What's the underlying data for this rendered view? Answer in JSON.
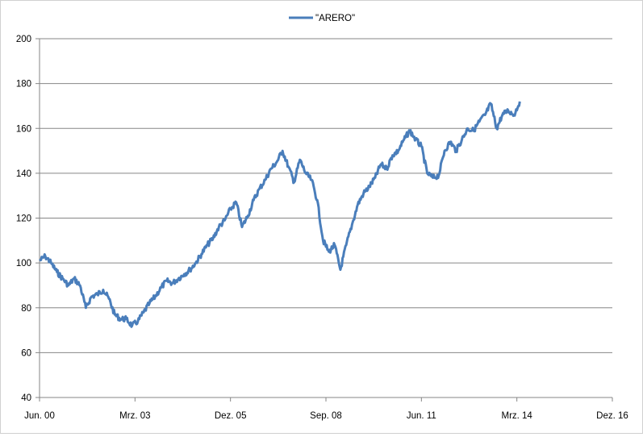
{
  "chart_data": {
    "type": "line",
    "title": "",
    "xlabel": "",
    "ylabel": "",
    "ylim": [
      40,
      200
    ],
    "yticks": [
      "40",
      "60",
      "80",
      "100",
      "120",
      "140",
      "160",
      "180",
      "200"
    ],
    "xlim": [
      "2000-06",
      "2016-12"
    ],
    "xticks": [
      "Jun. 00",
      "Mrz. 03",
      "Dez. 05",
      "Sep. 08",
      "Jun. 11",
      "Mrz. 14",
      "Dez. 16"
    ],
    "grid": "horizontal",
    "legend": "top-center",
    "series": [
      {
        "name": "\"ARERO\"",
        "color": "#4a7ebb",
        "points": [
          [
            "2000-06",
            101
          ],
          [
            "2000-08",
            103
          ],
          [
            "2000-10",
            100
          ],
          [
            "2000-12",
            96
          ],
          [
            "2001-02",
            93
          ],
          [
            "2001-04",
            90
          ],
          [
            "2001-06",
            93
          ],
          [
            "2001-08",
            90
          ],
          [
            "2001-10",
            80
          ],
          [
            "2001-12",
            85
          ],
          [
            "2002-02",
            86
          ],
          [
            "2002-04",
            88
          ],
          [
            "2002-06",
            84
          ],
          [
            "2002-08",
            77
          ],
          [
            "2002-10",
            75
          ],
          [
            "2002-12",
            75
          ],
          [
            "2003-02",
            72
          ],
          [
            "2003-04",
            74
          ],
          [
            "2003-06",
            78
          ],
          [
            "2003-08",
            82
          ],
          [
            "2003-10",
            85
          ],
          [
            "2003-12",
            89
          ],
          [
            "2004-02",
            92
          ],
          [
            "2004-04",
            91
          ],
          [
            "2004-06",
            93
          ],
          [
            "2004-08",
            95
          ],
          [
            "2004-10",
            97
          ],
          [
            "2004-12",
            100
          ],
          [
            "2005-02",
            104
          ],
          [
            "2005-04",
            108
          ],
          [
            "2005-06",
            111
          ],
          [
            "2005-08",
            116
          ],
          [
            "2005-10",
            119
          ],
          [
            "2005-12",
            124
          ],
          [
            "2006-02",
            127
          ],
          [
            "2006-04",
            116
          ],
          [
            "2006-06",
            121
          ],
          [
            "2006-08",
            128
          ],
          [
            "2006-10",
            133
          ],
          [
            "2006-12",
            137
          ],
          [
            "2007-02",
            142
          ],
          [
            "2007-04",
            145
          ],
          [
            "2007-06",
            150
          ],
          [
            "2007-08",
            143
          ],
          [
            "2007-10",
            136
          ],
          [
            "2007-12",
            146
          ],
          [
            "2008-02",
            140
          ],
          [
            "2008-04",
            137
          ],
          [
            "2008-06",
            128
          ],
          [
            "2008-08",
            110
          ],
          [
            "2008-10",
            105
          ],
          [
            "2008-12",
            108
          ],
          [
            "2009-02",
            97
          ],
          [
            "2009-04",
            108
          ],
          [
            "2009-06",
            117
          ],
          [
            "2009-08",
            126
          ],
          [
            "2009-10",
            131
          ],
          [
            "2009-12",
            134
          ],
          [
            "2010-02",
            138
          ],
          [
            "2010-04",
            144
          ],
          [
            "2010-06",
            142
          ],
          [
            "2010-08",
            148
          ],
          [
            "2010-10",
            150
          ],
          [
            "2010-12",
            155
          ],
          [
            "2011-02",
            159
          ],
          [
            "2011-04",
            155
          ],
          [
            "2011-06",
            152
          ],
          [
            "2011-08",
            140
          ],
          [
            "2011-10",
            138
          ],
          [
            "2011-12",
            139
          ],
          [
            "2012-02",
            150
          ],
          [
            "2012-04",
            154
          ],
          [
            "2012-06",
            150
          ],
          [
            "2012-08",
            155
          ],
          [
            "2012-10",
            160
          ],
          [
            "2012-12",
            159
          ],
          [
            "2013-02",
            163
          ],
          [
            "2013-04",
            166
          ],
          [
            "2013-06",
            171
          ],
          [
            "2013-08",
            160
          ],
          [
            "2013-10",
            166
          ],
          [
            "2013-12",
            168
          ],
          [
            "2014-02",
            166
          ],
          [
            "2014-04",
            172
          ]
        ]
      }
    ]
  }
}
